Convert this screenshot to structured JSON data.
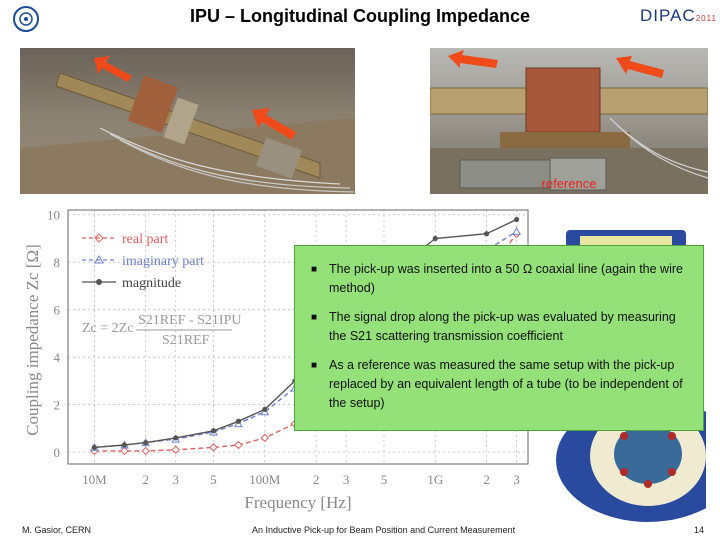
{
  "slide": {
    "title": "IPU – Longitudinal Coupling Impedance",
    "logo_right": "DIPAC",
    "logo_right_year": "2011",
    "reference_label": "reference",
    "bullets": [
      "The pick-up was inserted into a 50 Ω coaxial line (again the wire method)",
      "The signal drop along the pick-up was evaluated by measuring the S21 scattering transmission coefficient",
      "As a reference was measured the same setup with the pick-up replaced by an equivalent length of a tube (to be independent of the setup)"
    ],
    "footer": {
      "author": "M. Gasior, CERN",
      "talk": "An Inductive Pick-up for Beam Position and Current Measurement",
      "page": "14"
    },
    "icons": [
      "cern-logo-icon",
      "orange-arrow-icon",
      "bullet-square-icon"
    ],
    "colors": {
      "arrow": "#f04a1a",
      "reference": "#e8241c",
      "box": "#94e079",
      "box_border": "#4aa43a"
    }
  },
  "chart_data": {
    "type": "line",
    "xlabel": "Frequency [Hz]",
    "ylabel": "Coupling impedance Zc [Ω]",
    "x_scale": "log",
    "xlim": [
      7000000,
      3500000000
    ],
    "ylim": [
      -0.5,
      10.2
    ],
    "x_ticks": [
      10000000,
      20000000,
      30000000,
      50000000,
      100000000,
      200000000,
      300000000,
      500000000,
      1000000000,
      2000000000,
      3000000000
    ],
    "x_tick_labels": [
      "10M",
      "2",
      "3",
      "5",
      "100M",
      "2",
      "3",
      "5",
      "1G",
      "2",
      "3"
    ],
    "y_ticks": [
      0,
      2,
      4,
      6,
      8,
      10
    ],
    "y_tick_labels": [
      "0",
      "2",
      "4",
      "6",
      "8",
      "10"
    ],
    "grid": true,
    "legend_position": "top-left",
    "formula": {
      "lhs": "Zc = 2Zc",
      "numerator": "S21REF - S21IPU",
      "denominator": "S21REF"
    },
    "series": [
      {
        "name": "real part",
        "color": "#e06060",
        "style": "dashed",
        "marker": "diamond",
        "x": [
          10000000,
          15000000,
          20000000,
          30000000,
          50000000,
          70000000,
          100000000,
          150000000,
          200000000,
          250000000,
          300000000,
          500000000,
          1000000000,
          2000000000,
          3000000000
        ],
        "y": [
          0.05,
          0.05,
          0.05,
          0.1,
          0.2,
          0.3,
          0.6,
          1.2,
          1.9,
          2.4,
          2.8,
          3.6,
          5.5,
          7.5,
          9.2
        ]
      },
      {
        "name": "imaginary part",
        "color": "#7080d0",
        "style": "dashed",
        "marker": "triangle",
        "x": [
          10000000,
          15000000,
          20000000,
          30000000,
          50000000,
          70000000,
          100000000,
          150000000,
          200000000,
          250000000,
          300000000,
          500000000,
          1000000000,
          2000000000,
          3000000000
        ],
        "y": [
          0.2,
          0.3,
          0.4,
          0.55,
          0.85,
          1.2,
          1.7,
          2.7,
          3.6,
          4.3,
          5.0,
          6.5,
          7.5,
          8.5,
          9.3
        ]
      },
      {
        "name": "magnitude",
        "color": "#555555",
        "style": "solid",
        "marker": "circle",
        "x": [
          10000000,
          15000000,
          20000000,
          30000000,
          50000000,
          70000000,
          100000000,
          150000000,
          200000000,
          250000000,
          300000000,
          500000000,
          1000000000,
          2000000000,
          3000000000
        ],
        "y": [
          0.2,
          0.3,
          0.4,
          0.6,
          0.9,
          1.3,
          1.8,
          3.0,
          4.0,
          4.8,
          5.6,
          7.3,
          9.0,
          9.2,
          9.8
        ]
      }
    ]
  }
}
